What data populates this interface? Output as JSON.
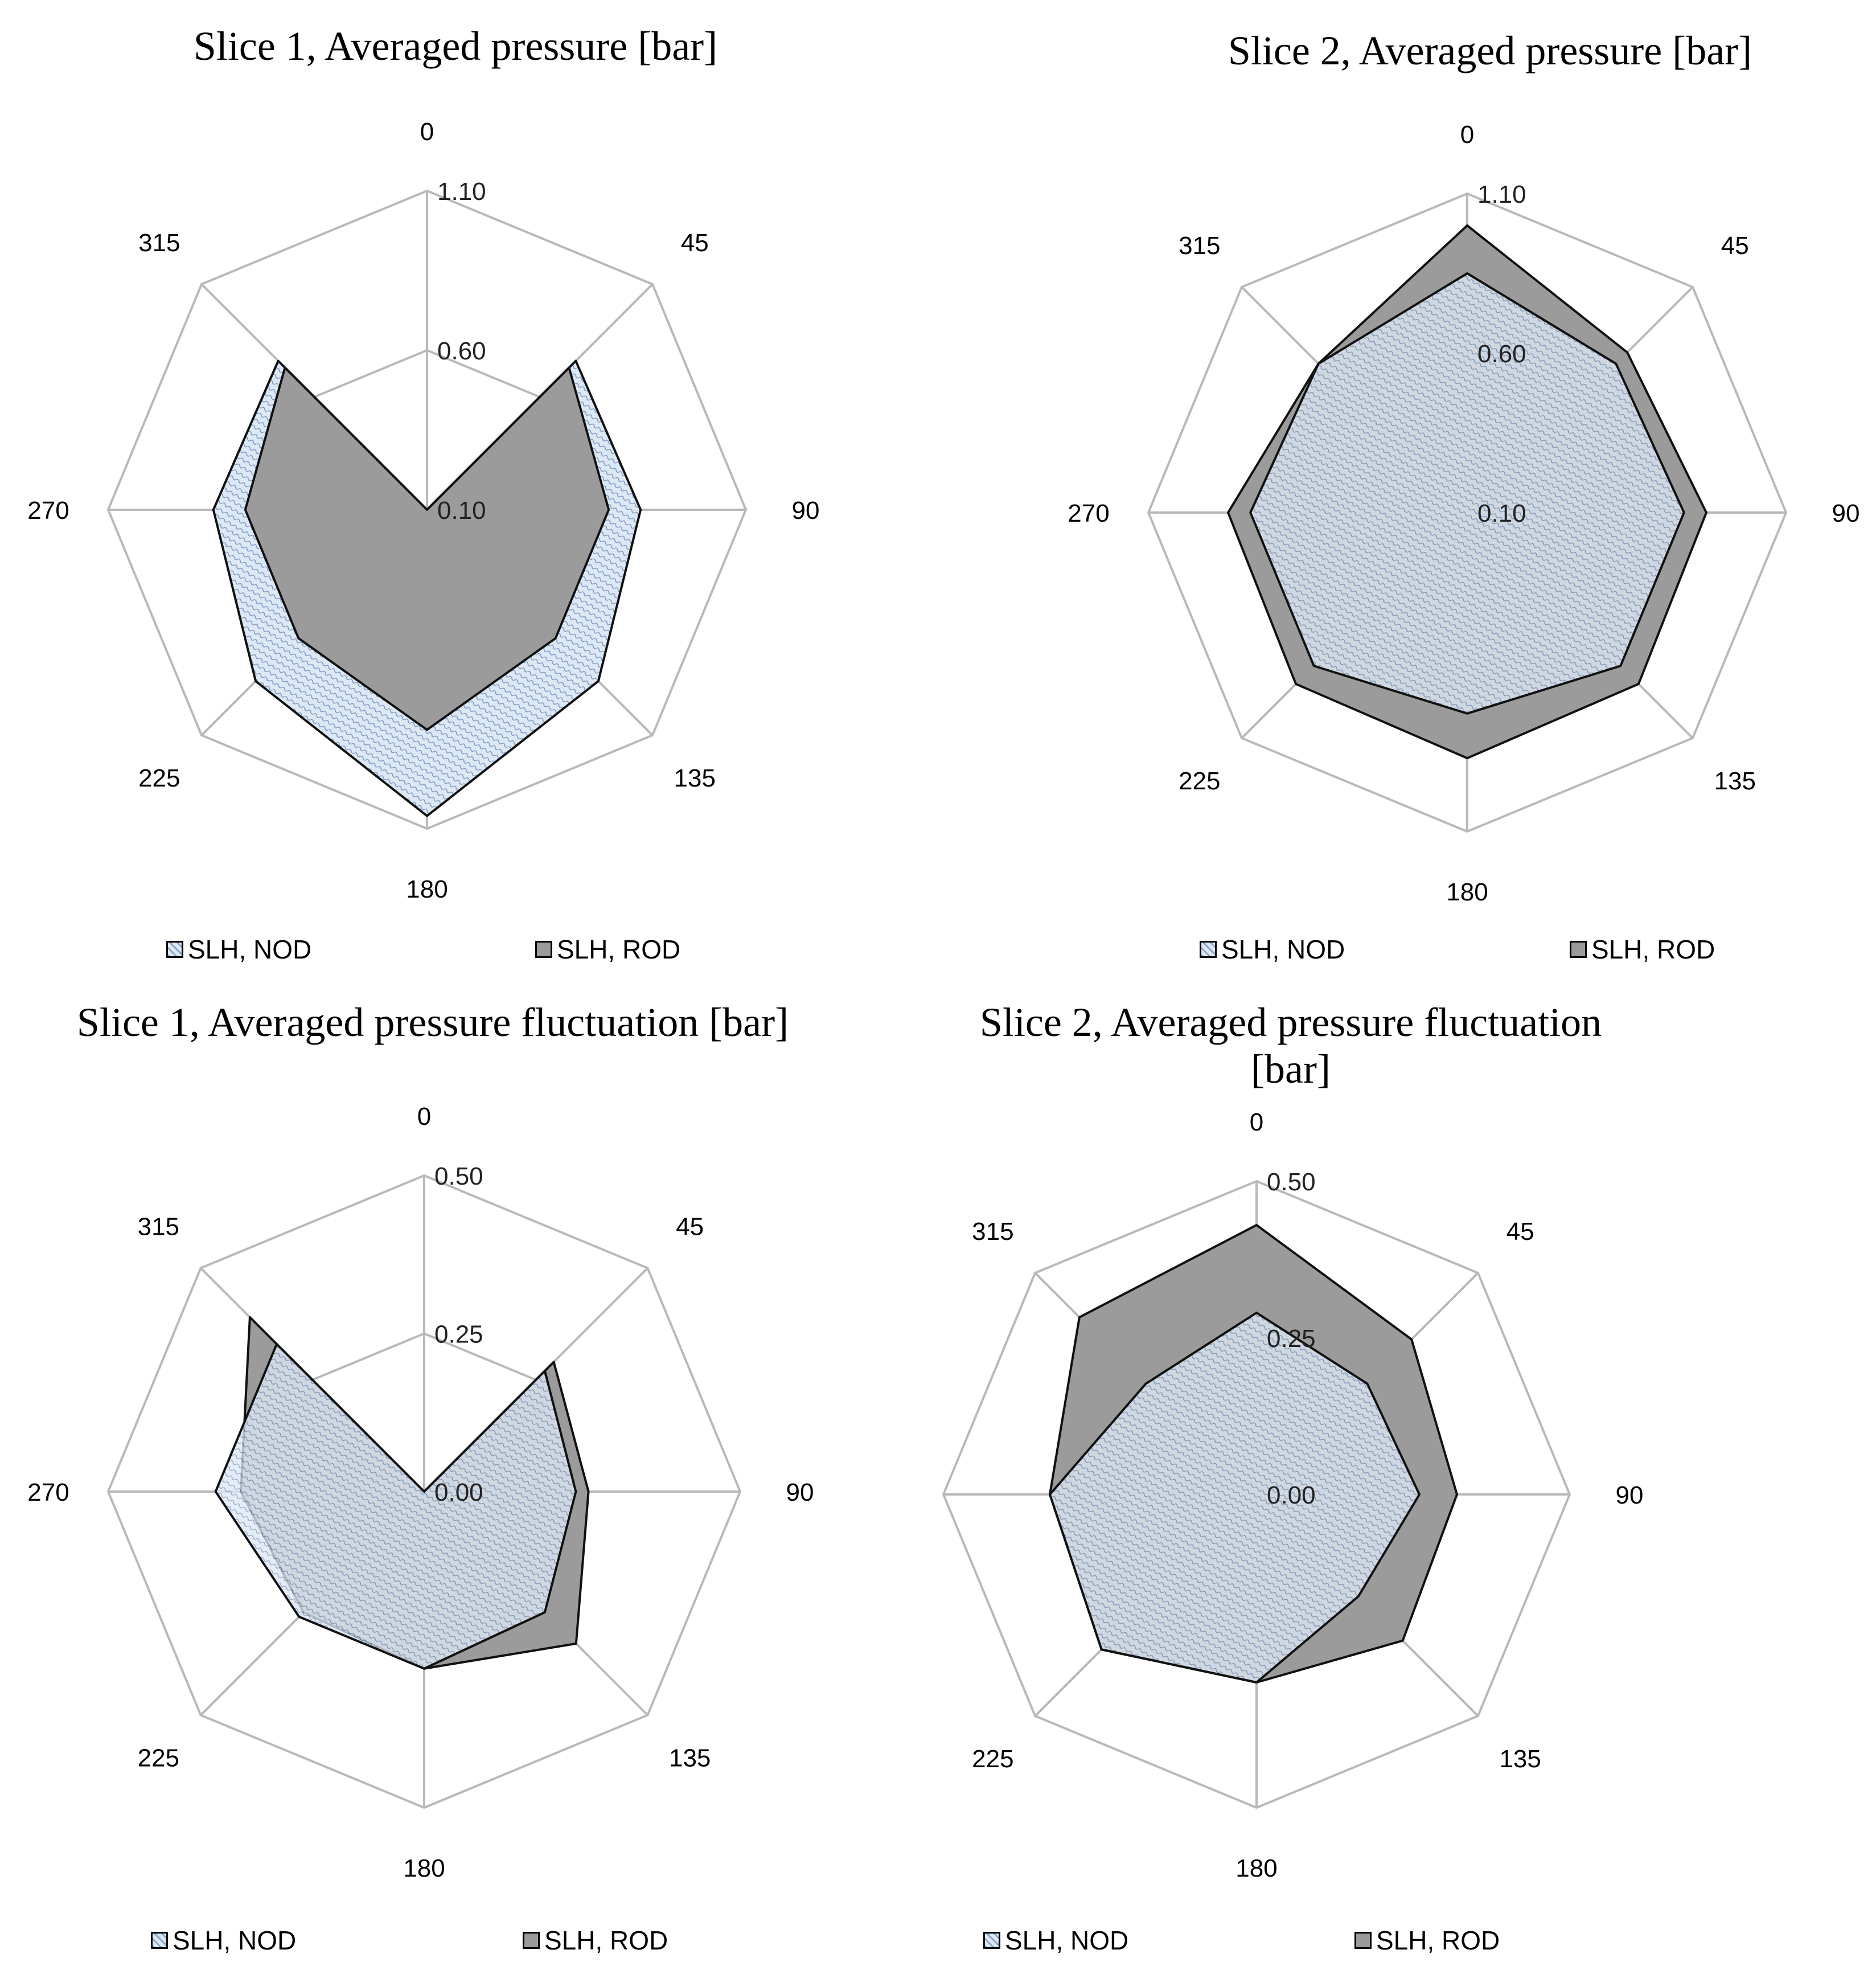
{
  "colors": {
    "grid": "#b9b9b9",
    "nod_fill": "#dde8f5",
    "nod_hatch": "#7f9ac0",
    "rod_fill": "#9b9b9b",
    "overlap_fill": "#93a2b4",
    "outline": "#111111"
  },
  "charts": [
    {
      "title": "Slice 1, Averaged pressure [bar]",
      "legend": {
        "nod": "SLH, NOD",
        "rod": "SLH, ROD"
      },
      "tick_labels": [
        "0.10",
        "0.60",
        "1.10"
      ],
      "angle_labels": [
        "0",
        "45",
        "90",
        "135",
        "180",
        "225",
        "270",
        "315"
      ]
    },
    {
      "title": "Slice 2, Averaged pressure [bar]",
      "legend": {
        "nod": "SLH, NOD",
        "rod": "SLH, ROD"
      },
      "tick_labels": [
        "0.10",
        "0.60",
        "1.10"
      ],
      "angle_labels": [
        "0",
        "45",
        "90",
        "135",
        "180",
        "225",
        "270",
        "315"
      ]
    },
    {
      "title": "Slice 1, Averaged pressure fluctuation [bar]",
      "legend": {
        "nod": "SLH, NOD",
        "rod": "SLH, ROD"
      },
      "tick_labels": [
        "0.00",
        "0.25",
        "0.50"
      ],
      "angle_labels": [
        "0",
        "45",
        "90",
        "135",
        "180",
        "225",
        "270",
        "315"
      ]
    },
    {
      "title": "Slice 2, Averaged pressure fluctuation [bar]",
      "legend": {
        "nod": "SLH, NOD",
        "rod": "SLH, ROD"
      },
      "tick_labels": [
        "0.00",
        "0.25",
        "0.50"
      ],
      "angle_labels": [
        "0",
        "45",
        "90",
        "135",
        "180",
        "225",
        "270",
        "315"
      ]
    }
  ],
  "chart_data": [
    {
      "type": "radar",
      "title": "Slice 1, Averaged pressure [bar]",
      "categories": [
        "0",
        "45",
        "90",
        "135",
        "180",
        "225",
        "270",
        "315"
      ],
      "rlim": [
        0.1,
        1.1
      ],
      "ticks": [
        0.1,
        0.6,
        1.1
      ],
      "series": [
        {
          "name": "SLH, NOD",
          "values": [
            0.1,
            0.76,
            0.77,
            0.86,
            1.06,
            0.86,
            0.77,
            0.76
          ]
        },
        {
          "name": "SLH, ROD",
          "values": [
            0.1,
            0.73,
            0.67,
            0.67,
            0.79,
            0.67,
            0.67,
            0.73
          ]
        }
      ]
    },
    {
      "type": "radar",
      "title": "Slice 2, Averaged pressure [bar]",
      "categories": [
        "0",
        "45",
        "90",
        "135",
        "180",
        "225",
        "270",
        "315"
      ],
      "rlim": [
        0.1,
        1.1
      ],
      "ticks": [
        0.1,
        0.6,
        1.1
      ],
      "series": [
        {
          "name": "SLH, NOD",
          "values": [
            0.85,
            0.76,
            0.78,
            0.78,
            0.73,
            0.78,
            0.78,
            0.76
          ]
        },
        {
          "name": "SLH, ROD",
          "values": [
            1.0,
            0.81,
            0.85,
            0.86,
            0.87,
            0.86,
            0.85,
            0.76
          ]
        }
      ]
    },
    {
      "type": "radar",
      "title": "Slice 1, Averaged pressure fluctuation [bar]",
      "categories": [
        "0",
        "45",
        "90",
        "135",
        "180",
        "225",
        "270",
        "315"
      ],
      "rlim": [
        0.0,
        0.5
      ],
      "ticks": [
        0.0,
        0.25,
        0.5
      ],
      "series": [
        {
          "name": "SLH, NOD",
          "values": [
            0.0,
            0.27,
            0.24,
            0.27,
            0.28,
            0.28,
            0.33,
            0.33
          ]
        },
        {
          "name": "SLH, ROD",
          "values": [
            0.0,
            0.29,
            0.26,
            0.34,
            0.28,
            0.27,
            0.29,
            0.39
          ]
        }
      ]
    },
    {
      "type": "radar",
      "title": "Slice 2, Averaged pressure fluctuation [bar]",
      "categories": [
        "0",
        "45",
        "90",
        "135",
        "180",
        "225",
        "270",
        "315"
      ],
      "rlim": [
        0.0,
        0.5
      ],
      "ticks": [
        0.0,
        0.25,
        0.5
      ],
      "series": [
        {
          "name": "SLH, NOD",
          "values": [
            0.29,
            0.25,
            0.26,
            0.23,
            0.3,
            0.35,
            0.33,
            0.25
          ]
        },
        {
          "name": "SLH, ROD",
          "values": [
            0.43,
            0.35,
            0.32,
            0.33,
            0.3,
            0.35,
            0.33,
            0.4
          ]
        }
      ]
    }
  ]
}
